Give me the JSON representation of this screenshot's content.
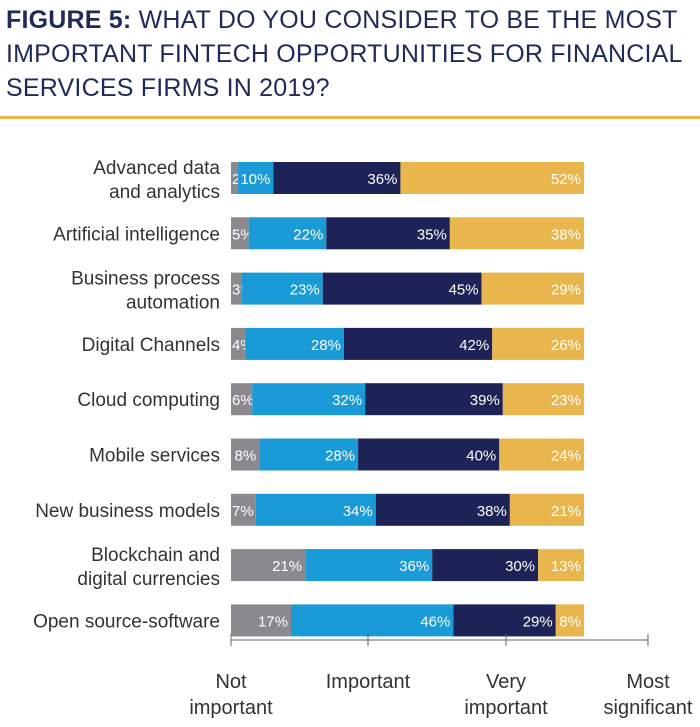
{
  "header": {
    "figure_label": "FIGURE 5:",
    "title_text": "WHAT DO YOU CONSIDER TO BE THE MOST IMPORTANT FINTECH OPPORTUNITIES FOR FINANCIAL SERVICES FIRMS IN 2019?"
  },
  "colors": {
    "not_important": "#8a8a8e",
    "important": "#1a9ad6",
    "very_important": "#1d2356",
    "most_significant": "#e8b64c",
    "accent_rule": "#e8b64c",
    "title": "#1f2a5a"
  },
  "chart_data": {
    "type": "bar",
    "orientation": "horizontal",
    "stacked": true,
    "categories": [
      [
        "Advanced data",
        "and analytics"
      ],
      [
        "Artificial intelligence"
      ],
      [
        "Business process",
        "automation"
      ],
      [
        "Digital Channels"
      ],
      [
        "Cloud computing"
      ],
      [
        "Mobile services"
      ],
      [
        "New business models"
      ],
      [
        "Blockchain and",
        "digital currencies"
      ],
      [
        "Open source-software"
      ]
    ],
    "series": [
      {
        "values": [
          2,
          5,
          3,
          4,
          6,
          8,
          7,
          21,
          17
        ]
      },
      {
        "values": [
          10,
          22,
          23,
          28,
          32,
          28,
          34,
          36,
          46
        ]
      },
      {
        "values": [
          36,
          35,
          45,
          42,
          39,
          40,
          38,
          30,
          29
        ]
      },
      {
        "values": [
          52,
          38,
          29,
          26,
          23,
          24,
          21,
          13,
          8
        ]
      }
    ],
    "value_suffix": "%",
    "x_axis_labels": [
      [
        "Not",
        "important"
      ],
      [
        "Important"
      ],
      [
        "Very",
        "important"
      ],
      [
        "Most",
        "significant"
      ]
    ],
    "legend": "none",
    "grid": false
  }
}
